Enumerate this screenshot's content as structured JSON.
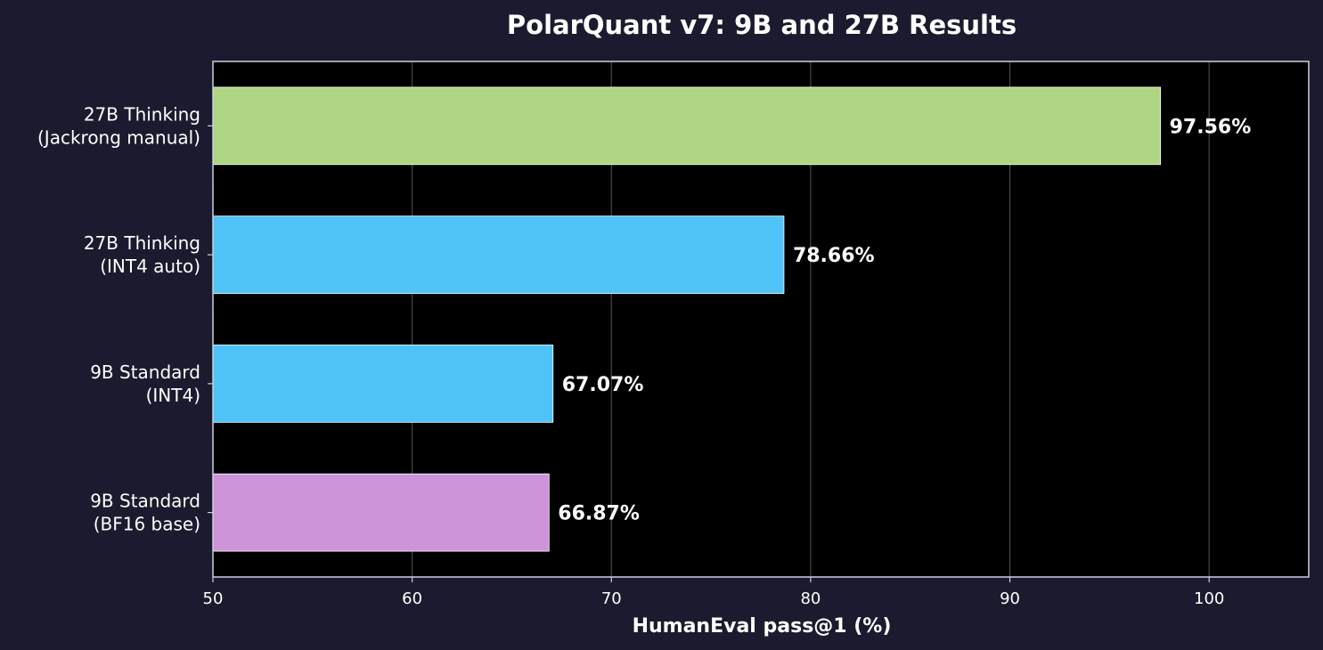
{
  "chart_data": {
    "type": "bar",
    "orientation": "horizontal",
    "title": "PolarQuant v7: 9B and 27B Results",
    "xlabel": "HumanEval pass@1 (%)",
    "ylabel": "",
    "xlim": [
      50,
      105
    ],
    "xticks": [
      50,
      60,
      70,
      80,
      90,
      100
    ],
    "grid": "x",
    "categories": [
      [
        "27B Thinking",
        "(Jackrong manual)"
      ],
      [
        "27B Thinking",
        "(INT4 auto)"
      ],
      [
        "9B Standard",
        "(INT4)"
      ],
      [
        "9B Standard",
        "(BF16 base)"
      ]
    ],
    "values": [
      97.56,
      78.66,
      67.07,
      66.87
    ],
    "value_labels": [
      "97.56%",
      "78.66%",
      "67.07%",
      "66.87%"
    ],
    "bar_colors": [
      "#aed581",
      "#4fc3f7",
      "#4fc3f7",
      "#ce93d8"
    ]
  },
  "colors": {
    "figure_bg": "#1b1b2f",
    "plot_bg": "#000000",
    "text": "#ffffff",
    "spine": "#cfcfdf",
    "grid": "#555555"
  }
}
